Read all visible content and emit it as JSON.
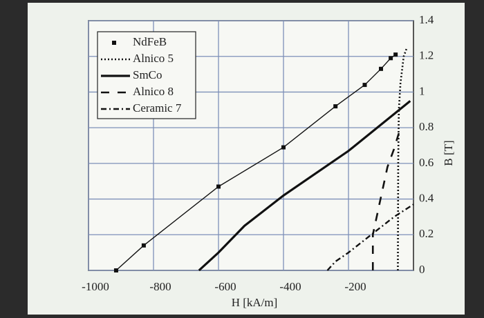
{
  "chart_data": {
    "type": "line",
    "xlabel": "H [kA/m]",
    "ylabel": "B [T]",
    "xlim": [
      -1000,
      0
    ],
    "xticks": [
      -1000,
      -800,
      -600,
      -400,
      -200
    ],
    "ylim": [
      0,
      1.4
    ],
    "yticks": [
      0,
      0.2,
      0.4,
      0.6,
      0.8,
      1,
      1.2,
      1.4
    ],
    "grid": true,
    "legend": "upper left",
    "series": [
      {
        "name": "NdFeB",
        "color": "#111111",
        "line_style": "solid",
        "marker": "square",
        "x": [
          -915,
          -830,
          -600,
          -400,
          -240,
          -150,
          -100,
          -70,
          -55
        ],
        "values": [
          0,
          0.14,
          0.47,
          0.69,
          0.92,
          1.04,
          1.13,
          1.19,
          1.21
        ]
      },
      {
        "name": "Alnico 5",
        "color": "#111111",
        "line_style": "dotted",
        "x": [
          -48,
          -47,
          -45,
          -40,
          -30,
          -20
        ],
        "values": [
          0,
          0.6,
          0.9,
          1.05,
          1.2,
          1.25
        ]
      },
      {
        "name": "SmCo",
        "color": "#111111",
        "line_style": "thick",
        "x": [
          -660,
          -600,
          -520,
          -400,
          -200,
          -10
        ],
        "values": [
          0,
          0.1,
          0.25,
          0.42,
          0.67,
          0.95
        ]
      },
      {
        "name": "Alnico 8",
        "color": "#111111",
        "line_style": "dashed",
        "x": [
          -125,
          -125,
          -105,
          -80,
          -60,
          -40
        ],
        "values": [
          0,
          0.2,
          0.37,
          0.58,
          0.68,
          0.8
        ]
      },
      {
        "name": "Ceramic 7",
        "color": "#111111",
        "line_style": "dash-dot",
        "x": [
          -265,
          -240,
          -200,
          -130,
          -60,
          0
        ],
        "values": [
          0,
          0.05,
          0.1,
          0.2,
          0.3,
          0.37
        ]
      }
    ]
  }
}
